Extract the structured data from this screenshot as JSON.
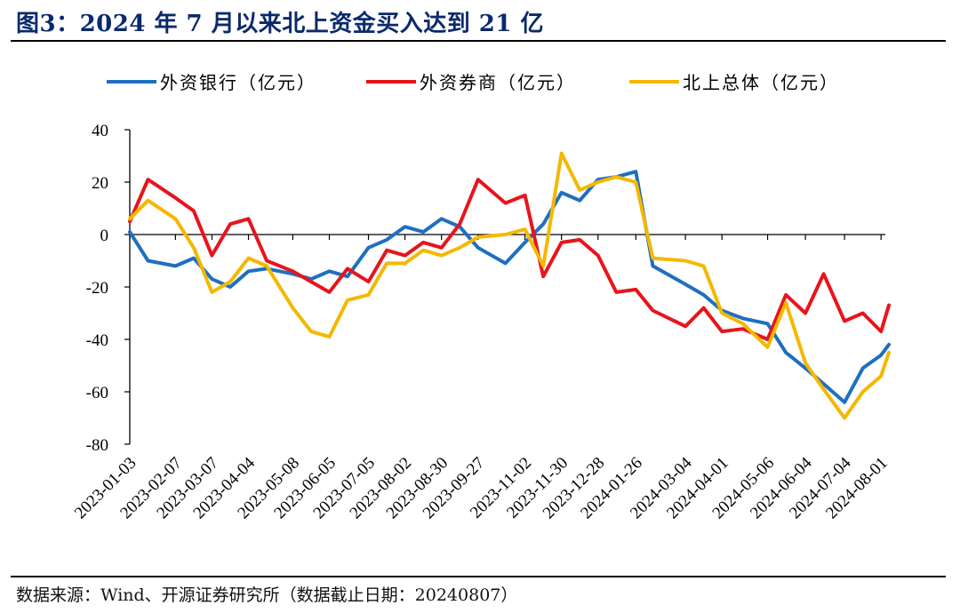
{
  "figure": {
    "title": "图3：2024 年 7 月以来北上资金买入达到 21 亿",
    "source": "数据来源：Wind、开源证券研究所（数据截止日期：20240807）"
  },
  "chart_data": {
    "type": "line",
    "legend_position": "top",
    "grid": false,
    "ylim": [
      -80,
      40
    ],
    "yticks": [
      40,
      20,
      0,
      -20,
      -40,
      -60,
      -80
    ],
    "x_tick_labels": [
      "2023-01-03",
      "2023-02-07",
      "2023-03-07",
      "2023-04-04",
      "2023-05-08",
      "2023-06-05",
      "2023-07-05",
      "2023-08-02",
      "2023-08-30",
      "2023-09-27",
      "2023-11-02",
      "2023-11-30",
      "2023-12-28",
      "2024-01-26",
      "2024-03-04",
      "2024-04-01",
      "2024-05-06",
      "2024-06-04",
      "2024-07-04",
      "2024-08-01"
    ],
    "x": [
      "2023-01-03",
      "2023-01-17",
      "2023-02-07",
      "2023-02-21",
      "2023-03-07",
      "2023-03-21",
      "2023-04-04",
      "2023-04-18",
      "2023-05-08",
      "2023-05-22",
      "2023-06-05",
      "2023-06-19",
      "2023-07-05",
      "2023-07-19",
      "2023-08-02",
      "2023-08-16",
      "2023-08-30",
      "2023-09-13",
      "2023-09-27",
      "2023-10-18",
      "2023-11-02",
      "2023-11-16",
      "2023-11-30",
      "2023-12-14",
      "2023-12-28",
      "2024-01-11",
      "2024-01-26",
      "2024-02-08",
      "2024-03-04",
      "2024-03-18",
      "2024-04-01",
      "2024-04-17",
      "2024-05-06",
      "2024-05-20",
      "2024-06-04",
      "2024-06-18",
      "2024-07-04",
      "2024-07-18",
      "2024-08-01",
      "2024-08-07"
    ],
    "series": [
      {
        "name": "外资银行（亿元）",
        "color": "#1f6fc0",
        "values": [
          1,
          -10,
          -12,
          -9,
          -17,
          -20,
          -14,
          -13,
          -15,
          -17,
          -14,
          -16,
          -5,
          -2,
          3,
          1,
          6,
          3,
          -5,
          -11,
          -3,
          4,
          16,
          13,
          21,
          22,
          24,
          -12,
          -19,
          -23,
          -29,
          -32,
          -34,
          -45,
          -51,
          -57,
          -64,
          -51,
          -46,
          -42
        ]
      },
      {
        "name": "外资券商（亿元）",
        "color": "#e8141c",
        "values": [
          5,
          21,
          14,
          9,
          -8,
          4,
          6,
          -10,
          -14,
          -18,
          -22,
          -13,
          -18,
          -6,
          -8,
          -3,
          -5,
          4,
          21,
          12,
          15,
          -16,
          -3,
          -2,
          -8,
          -22,
          -21,
          -29,
          -35,
          -28,
          -37,
          -36,
          -40,
          -23,
          -30,
          -15,
          -33,
          -30,
          -37,
          -27
        ]
      },
      {
        "name": "北上总体（亿元）",
        "color": "#f4b800",
        "values": [
          6,
          13,
          6,
          -5,
          -22,
          -18,
          -9,
          -12,
          -28,
          -37,
          -39,
          -25,
          -23,
          -11,
          -11,
          -6,
          -8,
          -5,
          -1,
          0,
          2,
          -12,
          31,
          17,
          20,
          22,
          20,
          -9,
          -10,
          -12,
          -30,
          -34,
          -43,
          -26,
          -49,
          -59,
          -70,
          -60,
          -54,
          -45
        ]
      }
    ]
  }
}
